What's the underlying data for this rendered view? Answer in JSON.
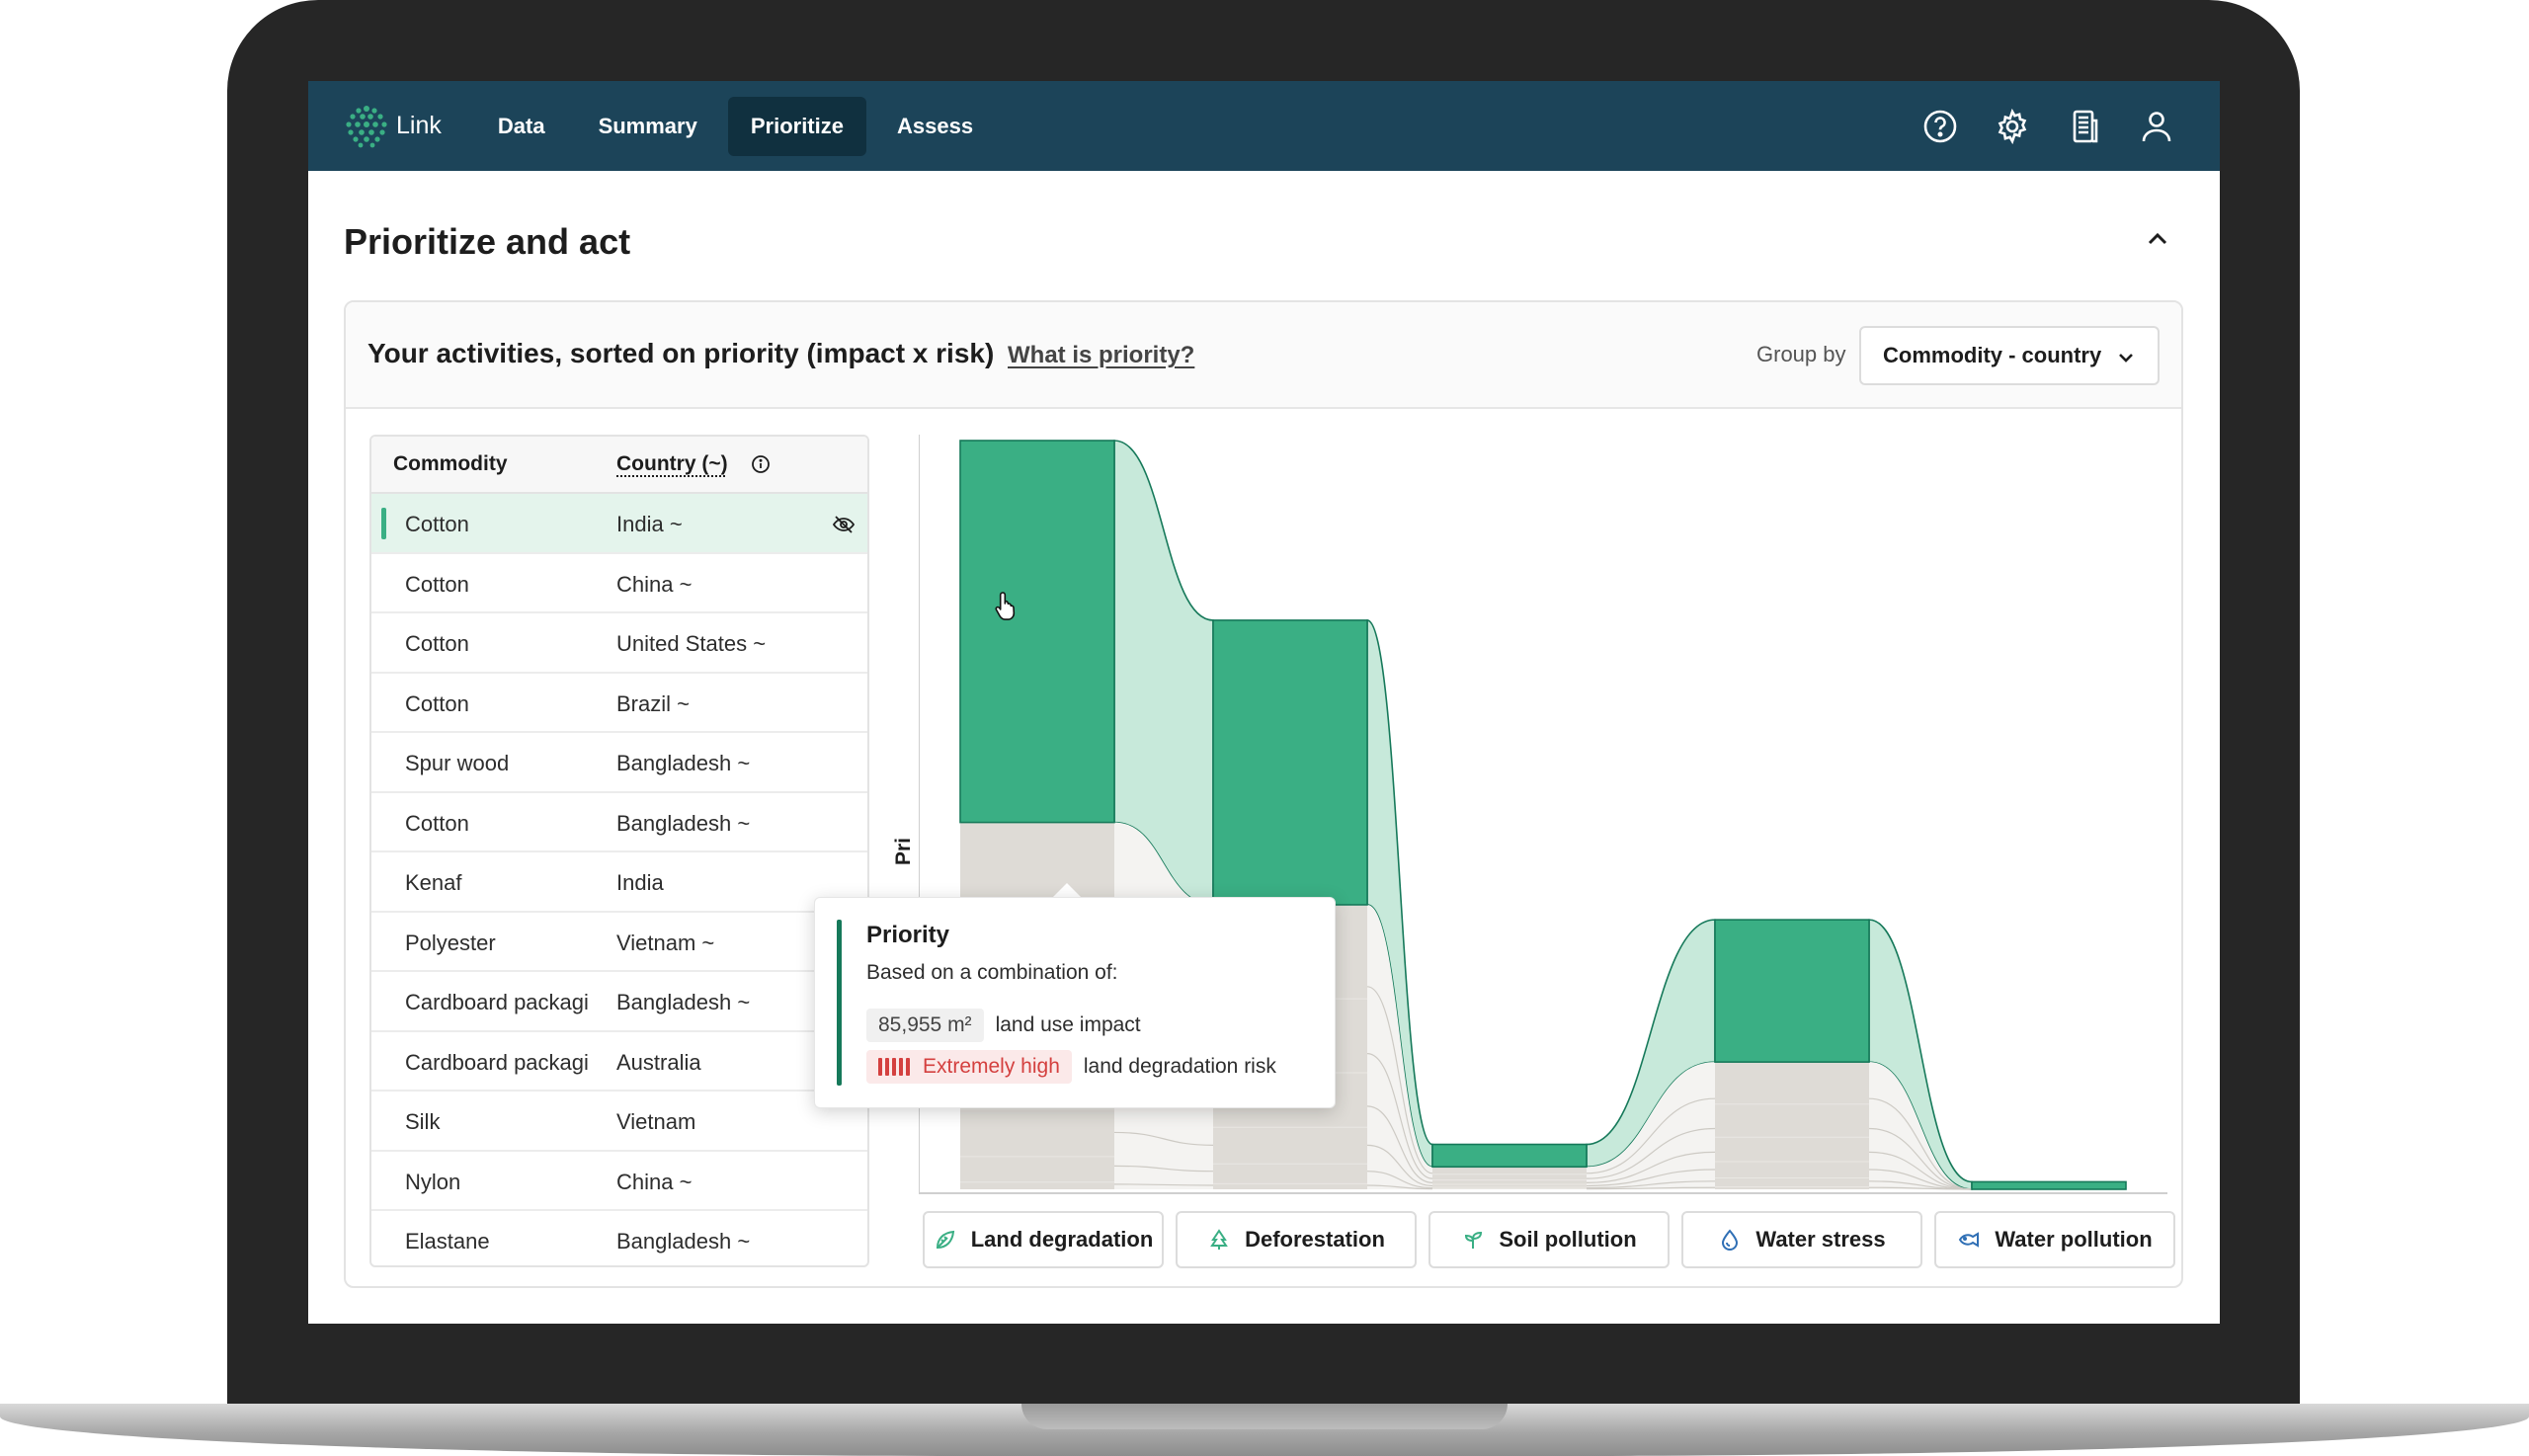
{
  "nav": {
    "brand": "Link",
    "items": [
      {
        "label": "Data",
        "active": false
      },
      {
        "label": "Summary",
        "active": false
      },
      {
        "label": "Prioritize",
        "active": true
      },
      {
        "label": "Assess",
        "active": false
      }
    ],
    "icons": [
      "help-icon",
      "settings-icon",
      "report-icon",
      "user-icon"
    ]
  },
  "page": {
    "title": "Prioritize and act"
  },
  "card": {
    "title": "Your activities, sorted on priority (impact x risk)",
    "link": "What is priority?",
    "group_by_label": "Group by",
    "group_by_value": "Commodity - country"
  },
  "table": {
    "headers": {
      "commodity": "Commodity",
      "country": "Country (~)"
    },
    "rows": [
      {
        "commodity": "Cotton",
        "country": "India ~",
        "selected": true
      },
      {
        "commodity": "Cotton",
        "country": "China ~"
      },
      {
        "commodity": "Cotton",
        "country": "United States ~"
      },
      {
        "commodity": "Cotton",
        "country": "Brazil ~"
      },
      {
        "commodity": "Spur wood",
        "country": "Bangladesh ~"
      },
      {
        "commodity": "Cotton",
        "country": "Bangladesh ~"
      },
      {
        "commodity": "Kenaf",
        "country": "India"
      },
      {
        "commodity": "Polyester",
        "country": "Vietnam ~"
      },
      {
        "commodity": "Cardboard packagi",
        "country": "Bangladesh ~"
      },
      {
        "commodity": "Cardboard packagi",
        "country": "Australia"
      },
      {
        "commodity": "Silk",
        "country": "Vietnam"
      },
      {
        "commodity": "Nylon",
        "country": "China ~"
      },
      {
        "commodity": "Elastane",
        "country": "Bangladesh ~"
      }
    ]
  },
  "chart": {
    "ylabel": "Pri"
  },
  "chart_data": {
    "type": "bar",
    "title": "",
    "ylabel": "Pri",
    "categories": [
      "Land degradation",
      "Deforestation",
      "Soil pollution",
      "Water stress",
      "Water pollution"
    ],
    "series": [
      {
        "values": [
          0.51,
          0.38,
          0.03,
          0.19,
          0.01
        ]
      },
      {
        "values": [
          0.49,
          0.38,
          0.03,
          0.17,
          0.0
        ]
      }
    ],
    "ylim": [
      0,
      1
    ],
    "colors": {
      "highlight": "#3aaf84",
      "highlight_light": "#c7e9da",
      "muted": "#dedbd6",
      "outline": "#16795a"
    }
  },
  "tabs": [
    {
      "label": "Land degradation",
      "icon": "leaf-icon"
    },
    {
      "label": "Deforestation",
      "icon": "tree-icon"
    },
    {
      "label": "Soil pollution",
      "icon": "sprout-icon"
    },
    {
      "label": "Water stress",
      "icon": "water-drop-icon"
    },
    {
      "label": "Water pollution",
      "icon": "fish-icon"
    }
  ],
  "tooltip": {
    "title": "Priority",
    "subtitle": "Based on a combination of:",
    "impact_value": "85,955 m²",
    "impact_label": "land use impact",
    "risk_value": "Extremely high",
    "risk_label": "land degradation risk",
    "risk_level": 1.0
  },
  "colors": {
    "nav_bg": "#1c4459",
    "accent": "#3aaf84",
    "risk_red": "#d4403f"
  }
}
